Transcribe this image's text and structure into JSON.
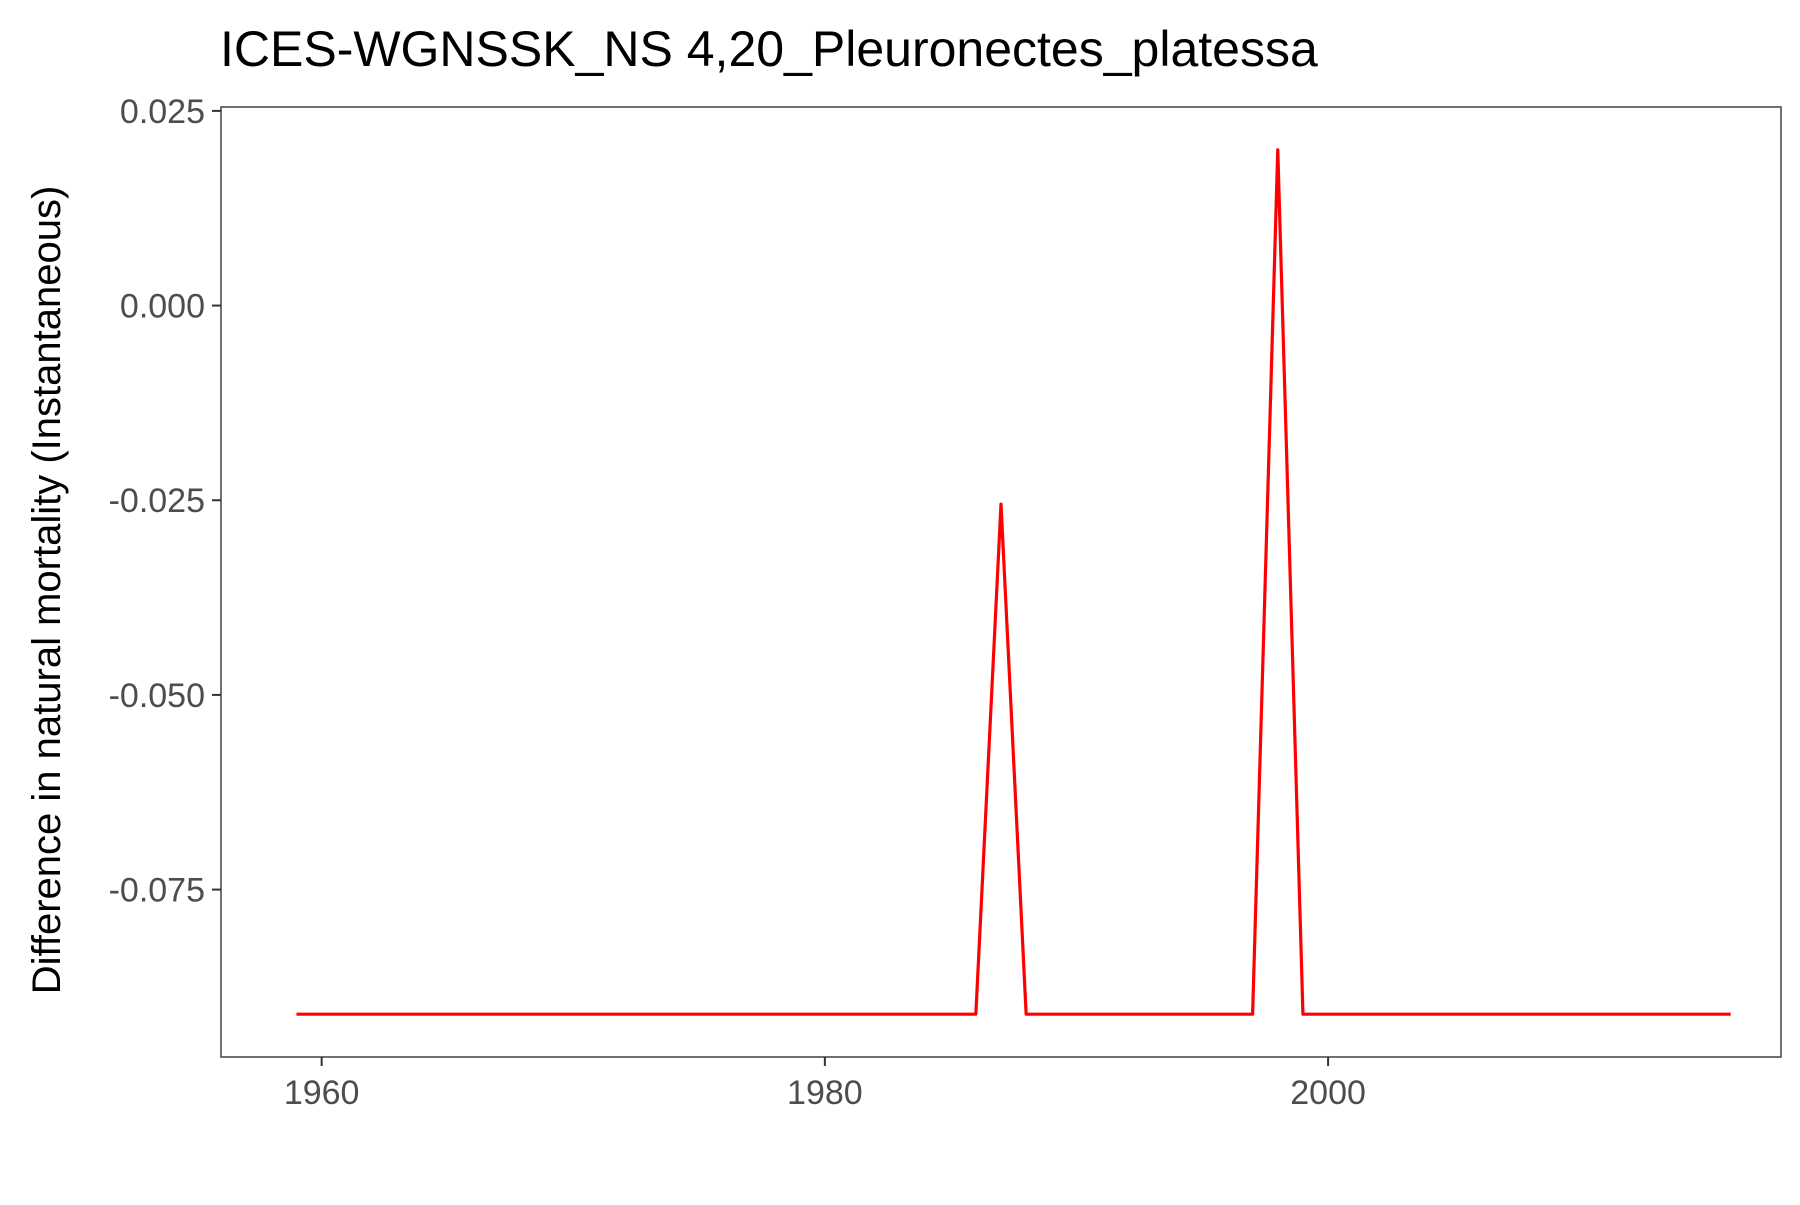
{
  "chart_data": {
    "type": "line",
    "title": "ICES-WGNSSK_NS 4,20_Pleuronectes_platessa",
    "xlabel": "",
    "ylabel": "Difference in natural mortality (Instantaneous)",
    "xlim": [
      1956,
      2018
    ],
    "ylim": [
      -0.0965,
      0.0255
    ],
    "x_ticks": [
      1960,
      1980,
      2000
    ],
    "x_tick_labels": [
      "1960",
      "1980",
      "2000"
    ],
    "y_ticks": [
      0.025,
      0.0,
      -0.025,
      -0.05,
      -0.075
    ],
    "y_tick_labels": [
      "0.025",
      "0.000",
      "-0.025",
      "-0.050",
      "-0.075"
    ],
    "grid": false,
    "legend": "none",
    "series": [
      {
        "color": "#ff0000",
        "x": [
          1959,
          1986,
          1987,
          1988,
          1997,
          1998,
          1999,
          2016
        ],
        "y": [
          -0.091,
          -0.091,
          -0.0255,
          -0.091,
          -0.091,
          0.02,
          -0.091,
          -0.091
        ]
      }
    ]
  }
}
